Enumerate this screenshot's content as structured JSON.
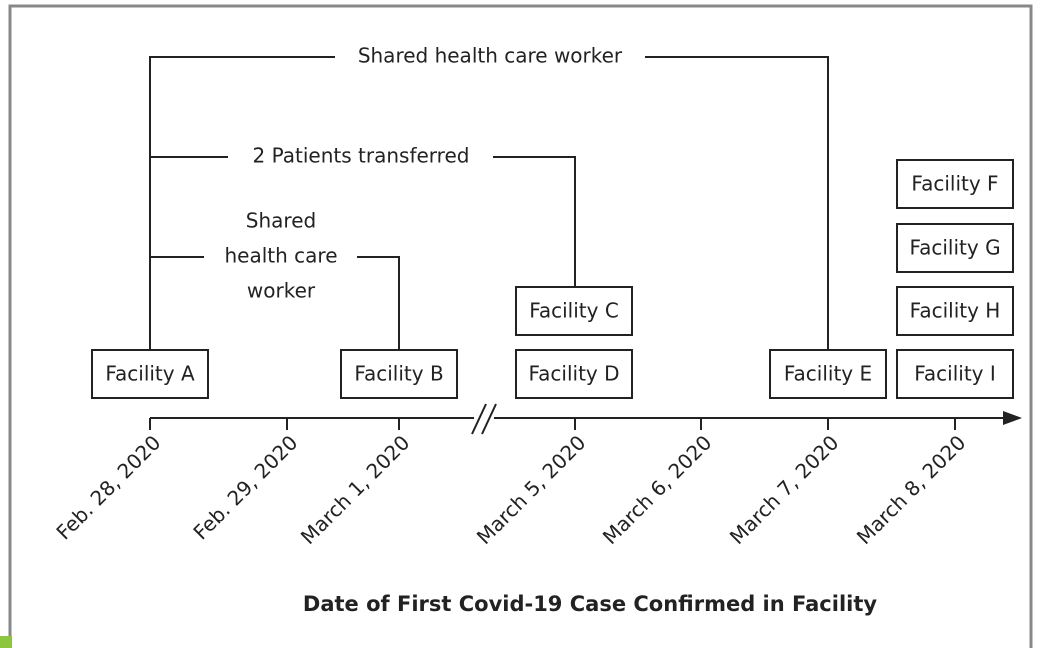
{
  "diagram": {
    "links": [
      {
        "label_lines": [
          "Shared health care worker"
        ]
      },
      {
        "label_lines": [
          "2 Patients transferred"
        ]
      },
      {
        "label_lines": [
          "Shared",
          "health care",
          "worker"
        ]
      }
    ],
    "nodes": [
      {
        "label": "Facility A"
      },
      {
        "label": "Facility B"
      },
      {
        "label": "Facility C"
      },
      {
        "label": "Facility D"
      },
      {
        "label": "Facility E"
      },
      {
        "label": "Facility F"
      },
      {
        "label": "Facility G"
      },
      {
        "label": "Facility H"
      },
      {
        "label": "Facility I"
      }
    ],
    "axis": {
      "dates": [
        "Feb. 28, 2020",
        "Feb. 29, 2020",
        "March 1, 2020",
        "March 5, 2020",
        "March 6, 2020",
        "March 7, 2020",
        "March 8, 2020"
      ],
      "title": "Date of First Covid-19 Case Confirmed in Facility"
    }
  }
}
